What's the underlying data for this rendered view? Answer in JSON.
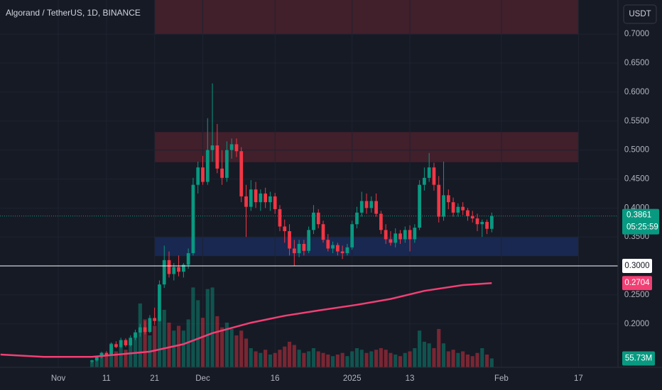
{
  "chart_data": {
    "type": "candlestick",
    "title": "Algorand / TetherUS, 1D, BINANCE",
    "currency": "USDT",
    "countdown": "05:25:59",
    "up_color": "#089981",
    "down_color": "#f23645",
    "xlim": [
      -12.1,
      116.2
    ],
    "ylim": [
      0.125,
      0.759
    ],
    "grid": true,
    "xticks": [
      {
        "value": 0,
        "label": "Nov"
      },
      {
        "value": 10,
        "label": "11"
      },
      {
        "value": 20,
        "label": "21"
      },
      {
        "value": 30,
        "label": "Dec"
      },
      {
        "value": 45,
        "label": "16"
      },
      {
        "value": 61,
        "label": "2025"
      },
      {
        "value": 73,
        "label": "13"
      },
      {
        "value": 92,
        "label": "Feb"
      },
      {
        "value": 108,
        "label": "17"
      }
    ],
    "yticks": [
      {
        "value": 0.2,
        "label": "0.2000"
      },
      {
        "value": 0.25,
        "label": "0.2500"
      },
      {
        "value": 0.35,
        "label": "0.3500"
      },
      {
        "value": 0.4,
        "label": "0.4000"
      },
      {
        "value": 0.45,
        "label": "0.4500"
      },
      {
        "value": 0.5,
        "label": "0.5000"
      },
      {
        "value": 0.55,
        "label": "0.5500"
      },
      {
        "value": 0.6,
        "label": "0.6000"
      },
      {
        "value": 0.65,
        "label": "0.6500"
      },
      {
        "value": 0.7,
        "label": "0.7000"
      }
    ],
    "x": [
      7,
      8,
      9,
      10,
      11,
      12,
      13,
      14,
      15,
      16,
      17,
      18,
      19,
      20,
      21,
      22,
      23,
      24,
      25,
      26,
      27,
      28,
      29,
      30,
      31,
      32,
      33,
      34,
      35,
      36,
      37,
      38,
      39,
      40,
      41,
      42,
      43,
      44,
      45,
      46,
      47,
      48,
      49,
      50,
      51,
      52,
      53,
      54,
      55,
      56,
      57,
      58,
      59,
      60,
      61,
      62,
      63,
      64,
      65,
      66,
      67,
      68,
      69,
      70,
      71,
      72,
      73,
      74,
      75,
      76,
      77,
      78,
      79,
      80,
      81,
      82,
      83,
      84,
      85,
      86,
      87,
      88,
      89,
      90
    ],
    "open": [
      0.135,
      0.137,
      0.143,
      0.15,
      0.146,
      0.165,
      0.16,
      0.172,
      0.163,
      0.176,
      0.185,
      0.194,
      0.186,
      0.21,
      0.205,
      0.268,
      0.31,
      0.286,
      0.298,
      0.29,
      0.302,
      0.322,
      0.44,
      0.47,
      0.445,
      0.5,
      0.508,
      0.468,
      0.452,
      0.5,
      0.51,
      0.498,
      0.42,
      0.402,
      0.432,
      0.41,
      0.425,
      0.41,
      0.42,
      0.398,
      0.368,
      0.36,
      0.33,
      0.322,
      0.338,
      0.326,
      0.362,
      0.392,
      0.372,
      0.345,
      0.33,
      0.336,
      0.325,
      0.322,
      0.332,
      0.372,
      0.392,
      0.412,
      0.4,
      0.412,
      0.39,
      0.362,
      0.346,
      0.34,
      0.356,
      0.346,
      0.362,
      0.346,
      0.366,
      0.44,
      0.452,
      0.47,
      0.44,
      0.385,
      0.422,
      0.41,
      0.392,
      0.402,
      0.396,
      0.386,
      0.382,
      0.372,
      0.376,
      0.364
    ],
    "high": [
      0.138,
      0.145,
      0.152,
      0.153,
      0.168,
      0.17,
      0.176,
      0.175,
      0.18,
      0.19,
      0.2,
      0.205,
      0.215,
      0.228,
      0.275,
      0.335,
      0.325,
      0.305,
      0.318,
      0.305,
      0.33,
      0.452,
      0.48,
      0.49,
      0.555,
      0.615,
      0.545,
      0.5,
      0.515,
      0.52,
      0.52,
      0.505,
      0.44,
      0.448,
      0.445,
      0.432,
      0.435,
      0.428,
      0.426,
      0.405,
      0.38,
      0.372,
      0.345,
      0.345,
      0.345,
      0.368,
      0.405,
      0.398,
      0.378,
      0.355,
      0.342,
      0.34,
      0.335,
      0.338,
      0.378,
      0.402,
      0.428,
      0.425,
      0.42,
      0.425,
      0.395,
      0.372,
      0.36,
      0.365,
      0.362,
      0.368,
      0.37,
      0.372,
      0.448,
      0.47,
      0.495,
      0.478,
      0.455,
      0.48,
      0.432,
      0.418,
      0.408,
      0.41,
      0.4,
      0.395,
      0.39,
      0.38,
      0.38,
      0.392
    ],
    "low": [
      0.132,
      0.135,
      0.14,
      0.144,
      0.145,
      0.158,
      0.158,
      0.16,
      0.161,
      0.172,
      0.178,
      0.182,
      0.184,
      0.198,
      0.204,
      0.262,
      0.28,
      0.275,
      0.282,
      0.28,
      0.295,
      0.318,
      0.425,
      0.44,
      0.44,
      0.48,
      0.46,
      0.44,
      0.445,
      0.485,
      0.488,
      0.41,
      0.35,
      0.395,
      0.4,
      0.395,
      0.4,
      0.395,
      0.39,
      0.36,
      0.34,
      0.318,
      0.3,
      0.315,
      0.318,
      0.322,
      0.355,
      0.365,
      0.34,
      0.325,
      0.322,
      0.318,
      0.312,
      0.318,
      0.328,
      0.365,
      0.385,
      0.39,
      0.392,
      0.385,
      0.355,
      0.338,
      0.335,
      0.332,
      0.338,
      0.34,
      0.325,
      0.34,
      0.362,
      0.43,
      0.445,
      0.43,
      0.375,
      0.378,
      0.398,
      0.385,
      0.385,
      0.388,
      0.378,
      0.375,
      0.36,
      0.35,
      0.355,
      0.358
    ],
    "close": [
      0.137,
      0.143,
      0.15,
      0.146,
      0.165,
      0.16,
      0.172,
      0.163,
      0.176,
      0.185,
      0.194,
      0.186,
      0.21,
      0.205,
      0.268,
      0.31,
      0.286,
      0.298,
      0.29,
      0.302,
      0.322,
      0.44,
      0.47,
      0.445,
      0.5,
      0.508,
      0.468,
      0.452,
      0.5,
      0.51,
      0.498,
      0.42,
      0.402,
      0.432,
      0.41,
      0.425,
      0.41,
      0.42,
      0.398,
      0.368,
      0.36,
      0.33,
      0.322,
      0.338,
      0.326,
      0.362,
      0.392,
      0.372,
      0.345,
      0.33,
      0.336,
      0.325,
      0.322,
      0.332,
      0.372,
      0.392,
      0.412,
      0.4,
      0.412,
      0.39,
      0.362,
      0.346,
      0.34,
      0.356,
      0.346,
      0.362,
      0.346,
      0.366,
      0.44,
      0.452,
      0.47,
      0.44,
      0.385,
      0.422,
      0.41,
      0.392,
      0.402,
      0.396,
      0.386,
      0.382,
      0.372,
      0.376,
      0.364,
      0.3861
    ],
    "volume": {
      "vlim": [
        0,
        2300
      ],
      "values": [
        40,
        60,
        90,
        70,
        150,
        100,
        130,
        110,
        170,
        220,
        400,
        300,
        200,
        260,
        320,
        360,
        280,
        230,
        260,
        230,
        300,
        500,
        420,
        310,
        490,
        500,
        320,
        250,
        280,
        240,
        200,
        230,
        180,
        120,
        100,
        90,
        110,
        80,
        90,
        110,
        130,
        160,
        140,
        110,
        90,
        100,
        120,
        100,
        90,
        80,
        70,
        80,
        90,
        70,
        100,
        120,
        110,
        90,
        100,
        110,
        120,
        110,
        90,
        80,
        70,
        90,
        100,
        120,
        230,
        160,
        150,
        120,
        240,
        150,
        100,
        110,
        90,
        100,
        80,
        70,
        90,
        120,
        80,
        55.73
      ],
      "last_label": "55.73M"
    },
    "ma": {
      "color": "#f23f74",
      "x": [
        -12,
        -3,
        7,
        19,
        26,
        32,
        40,
        47,
        54,
        62,
        69,
        76,
        84,
        90
      ],
      "values": [
        0.147,
        0.143,
        0.143,
        0.152,
        0.165,
        0.184,
        0.202,
        0.214,
        0.223,
        0.233,
        0.243,
        0.257,
        0.267,
        0.2704
      ]
    },
    "hline": {
      "value": 0.3,
      "label": "0.3000"
    },
    "zones": [
      {
        "x": [
          20,
          108
        ],
        "y": [
          0.7,
          0.76
        ],
        "color": "#f23645"
      },
      {
        "x": [
          20,
          108
        ],
        "y": [
          0.479,
          0.531
        ],
        "color": "#f23645"
      },
      {
        "x": [
          20,
          108
        ],
        "y": [
          0.317,
          0.35
        ],
        "color": "#2962ff"
      }
    ]
  }
}
